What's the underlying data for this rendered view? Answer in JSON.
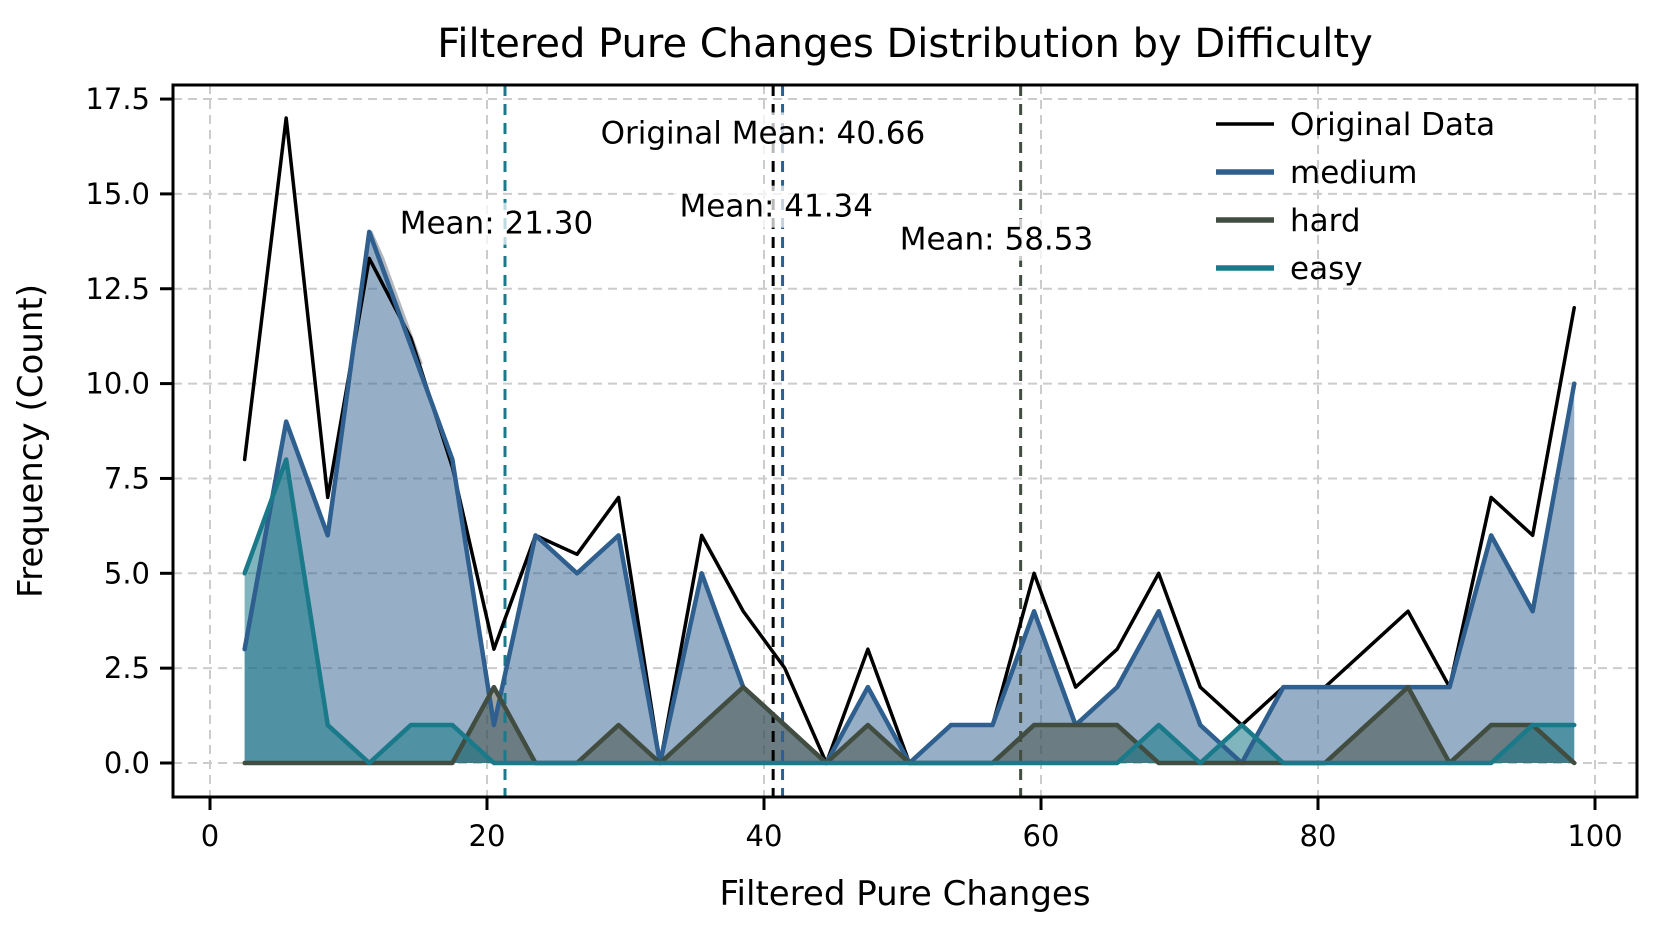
{
  "title": "Filtered Pure Changes Distribution by Difficulty",
  "xlabel": "Filtered Pure Changes",
  "ylabel": "Frequency (Count)",
  "axes": {
    "x_tick_labels": [
      "0",
      "20",
      "40",
      "60",
      "80",
      "100"
    ],
    "x_tick_values": [
      0,
      20,
      40,
      60,
      80,
      100
    ],
    "y_tick_labels": [
      "0.0",
      "2.5",
      "5.0",
      "7.5",
      "10.0",
      "12.5",
      "15.0",
      "17.5"
    ],
    "y_tick_values": [
      0,
      2.5,
      5,
      7.5,
      10,
      12.5,
      15,
      17.5
    ]
  },
  "legend": {
    "position": "upper-right",
    "entries": [
      "Original Data",
      "medium",
      "hard",
      "easy"
    ]
  },
  "chart_data": {
    "type": "area",
    "title": "Filtered Pure Changes Distribution by Difficulty",
    "xlabel": "Filtered Pure Changes",
    "ylabel": "Frequency (Count)",
    "xlim": [
      -2.3,
      103.3
    ],
    "ylim": [
      -0.9,
      17.9
    ],
    "grid": true,
    "legend_position": "upper right",
    "x": [
      2.5,
      5.5,
      8.5,
      11.5,
      14.5,
      17.5,
      20.5,
      23.5,
      26.5,
      29.5,
      32.5,
      35.5,
      38.5,
      41.5,
      44.5,
      47.5,
      50.5,
      53.5,
      56.5,
      59.5,
      62.5,
      65.5,
      68.5,
      71.5,
      74.5,
      77.5,
      80.5,
      83.5,
      86.5,
      89.5,
      92.5,
      95.5,
      98.5
    ],
    "series": [
      {
        "name": "Original Data",
        "color": "#000000",
        "fill": null,
        "line_width": 3.5,
        "values": [
          8,
          17,
          7,
          13.3,
          11.2,
          7.8,
          3,
          6,
          5.5,
          7,
          0,
          6,
          4,
          2.5,
          0,
          3,
          0,
          1,
          1,
          5,
          2,
          3,
          5,
          2,
          1,
          2,
          2,
          3,
          4,
          2,
          7,
          6,
          12
        ]
      },
      {
        "name": "medium",
        "color": "#2e5f8e",
        "fill": "rgba(46,95,142,0.50)",
        "line_width": 4.5,
        "values": [
          3,
          9,
          6,
          14,
          11,
          8,
          1,
          6,
          5,
          6,
          0,
          5,
          2,
          1,
          0,
          2,
          0,
          1,
          1,
          4,
          1,
          2,
          4,
          1,
          0,
          2,
          2,
          2,
          2,
          2,
          6,
          4,
          10
        ]
      },
      {
        "name": "hard",
        "color": "#424d41",
        "fill": "rgba(63,74,64,0.50)",
        "line_width": 4.5,
        "values": [
          0,
          0,
          0,
          0,
          0,
          0,
          2,
          0,
          0,
          1,
          0,
          1,
          2,
          1,
          0,
          1,
          0,
          0,
          0,
          1,
          1,
          1,
          0,
          0,
          0,
          0,
          0,
          1,
          2,
          0,
          1,
          1,
          0
        ]
      },
      {
        "name": "easy",
        "color": "#1a7a8a",
        "fill": "rgba(23,121,137,0.55)",
        "line_width": 4.5,
        "values": [
          5,
          8,
          1,
          0,
          1,
          1,
          0,
          0,
          0,
          0,
          0,
          0,
          0,
          0,
          0,
          0,
          0,
          0,
          0,
          0,
          0,
          0,
          1,
          0,
          1,
          0,
          0,
          0,
          0,
          0,
          0,
          1,
          1
        ]
      }
    ],
    "mean_lines": [
      {
        "label": "Mean: 21.30",
        "value": 21.3,
        "color": "#1a7a8a"
      },
      {
        "label": "Original Mean: 40.66",
        "value": 40.66,
        "color": "#000000"
      },
      {
        "label": "Mean: 41.34",
        "value": 41.34,
        "color": "#2e5f8e"
      },
      {
        "label": "Mean: 58.53",
        "value": 58.53,
        "color": "#424d41"
      }
    ],
    "annotations": [
      {
        "text": "Mean: 21.30",
        "x": 13.7,
        "y": 13.95
      },
      {
        "text": "Original Mean: 40.66",
        "x": 28.2,
        "y": 16.33
      },
      {
        "text": "Mean: 41.34",
        "x": 33.9,
        "y": 14.4
      },
      {
        "text": "Mean: 58.53",
        "x": 49.8,
        "y": 13.53
      }
    ],
    "artifact": {
      "color": "#b3b8bf",
      "points": [
        [
          11.55,
          14.0
        ],
        [
          12.4,
          13.3
        ],
        [
          15.2,
          10.5
        ]
      ]
    },
    "grid_color": "#cccccc",
    "spine_color": "#000000"
  }
}
